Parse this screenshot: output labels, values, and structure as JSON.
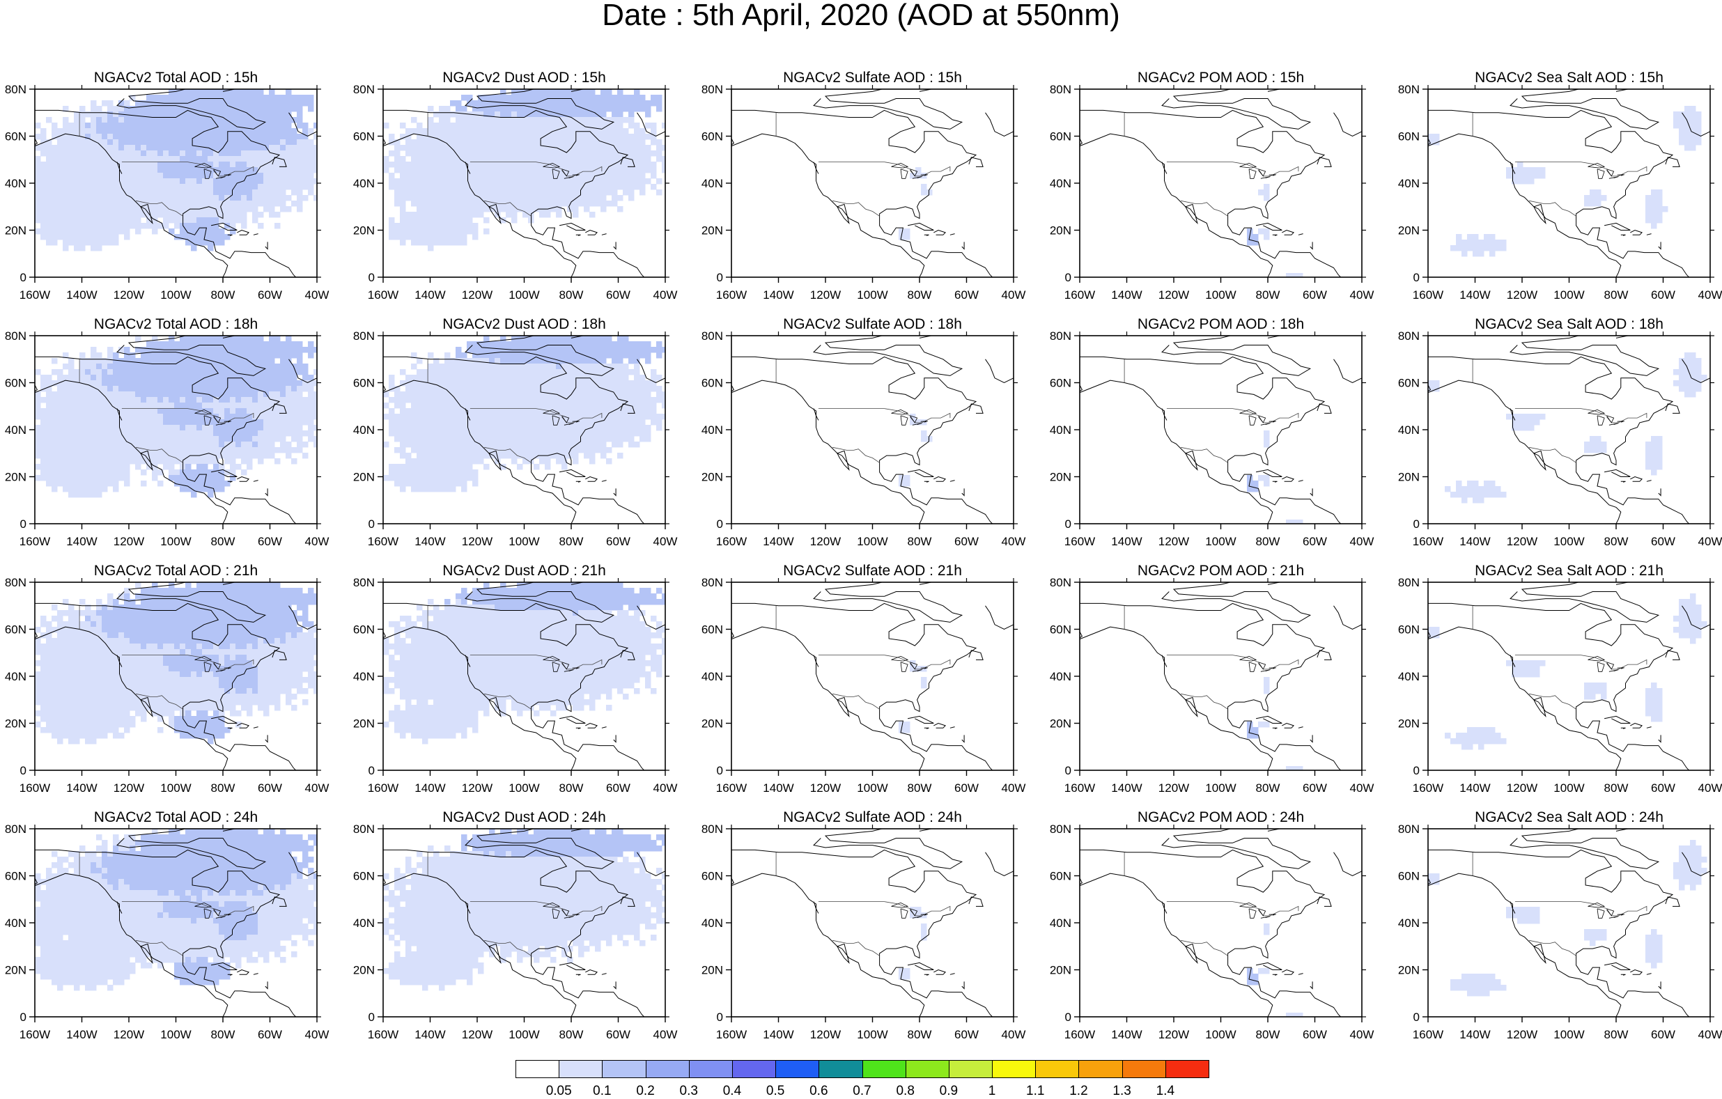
{
  "title": "Date : 5th April, 2020 (AOD at 550nm)",
  "panels": [
    [
      "NGACv2 Total AOD : 15h",
      "NGACv2 Dust AOD : 15h",
      "NGACv2 Sulfate AOD : 15h",
      "NGACv2 POM AOD : 15h",
      "NGACv2 Sea Salt AOD : 15h"
    ],
    [
      "NGACv2 Total AOD : 18h",
      "NGACv2 Dust AOD : 18h",
      "NGACv2 Sulfate AOD : 18h",
      "NGACv2 POM AOD : 18h",
      "NGACv2 Sea Salt AOD : 18h"
    ],
    [
      "NGACv2 Total AOD : 21h",
      "NGACv2 Dust AOD : 21h",
      "NGACv2 Sulfate AOD : 21h",
      "NGACv2 POM AOD : 21h",
      "NGACv2 Sea Salt AOD : 21h"
    ],
    [
      "NGACv2 Total AOD : 24h",
      "NGACv2 Dust AOD : 24h",
      "NGACv2 Sulfate AOD : 24h",
      "NGACv2 POM AOD : 24h",
      "NGACv2 Sea Salt  AOD : 24h"
    ]
  ],
  "lon_ticks": [
    "160W",
    "140W",
    "120W",
    "100W",
    "80W",
    "60W",
    "40W"
  ],
  "lat_ticks": [
    "0",
    "20N",
    "40N",
    "60N",
    "80N"
  ],
  "colorbar": {
    "labels": [
      "0.05",
      "0.1",
      "0.2",
      "0.3",
      "0.4",
      "0.5",
      "0.6",
      "0.7",
      "0.8",
      "0.9",
      "1",
      "1.1",
      "1.2",
      "1.3",
      "1.4"
    ],
    "colors": [
      "#ffffff",
      "#d8e0fb",
      "#b4c4f6",
      "#97aaf4",
      "#8090f2",
      "#6467ef",
      "#1f5ef5",
      "#118d99",
      "#4fe31b",
      "#8de81d",
      "#c6ed3c",
      "#f8f80c",
      "#f9c80a",
      "#f8a10c",
      "#f57a0c",
      "#f52d10"
    ]
  },
  "field_colors": {
    "low": "#d8e0fb",
    "mid": "#b4c4f6",
    "high": "#97aaf4"
  }
}
